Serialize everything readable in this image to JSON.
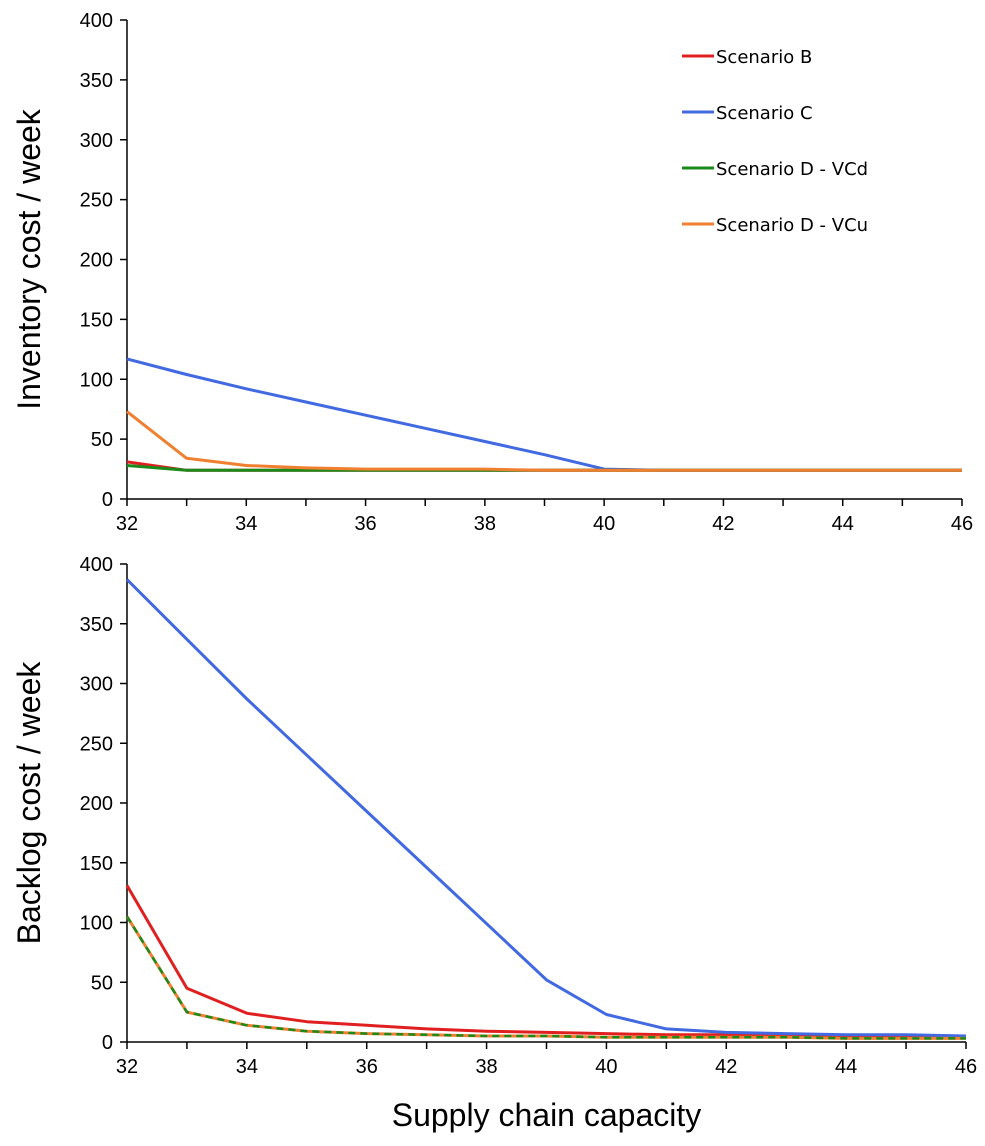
{
  "chart_data": [
    {
      "type": "line",
      "title": "",
      "xlabel": "",
      "ylabel": "Inventory cost / week",
      "xlim": [
        32,
        46
      ],
      "ylim": [
        0,
        400
      ],
      "xticks": [
        32,
        34,
        36,
        38,
        40,
        42,
        44,
        46
      ],
      "yticks": [
        0,
        50,
        100,
        150,
        200,
        250,
        300,
        350,
        400
      ],
      "grid": false,
      "legend_position": "top-right",
      "x": [
        32,
        33,
        34,
        35,
        36,
        37,
        38,
        39,
        40,
        41,
        42,
        43,
        44,
        45,
        46
      ],
      "series": [
        {
          "name": "Scenario B",
          "color": "#e02020",
          "dash": false,
          "values": [
            31,
            24,
            24,
            24,
            24,
            24,
            24,
            24,
            24,
            24,
            24,
            24,
            24,
            24,
            24
          ]
        },
        {
          "name": "Scenario C",
          "color": "#4169e1",
          "dash": false,
          "values": [
            117,
            104,
            92,
            81,
            70,
            59,
            48,
            37,
            25,
            24,
            24,
            24,
            24,
            24,
            24
          ]
        },
        {
          "name": "Scenario D - VCd",
          "color": "#1a8a1a",
          "dash": false,
          "values": [
            28,
            24,
            24,
            24,
            24,
            24,
            24,
            24,
            24,
            24,
            24,
            24,
            24,
            24,
            24
          ]
        },
        {
          "name": "Scenario D - VCu",
          "color": "#f08030",
          "dash": false,
          "values": [
            73,
            34,
            28,
            26,
            25,
            25,
            25,
            24,
            24,
            24,
            24,
            24,
            24,
            24,
            24
          ]
        }
      ]
    },
    {
      "type": "line",
      "title": "",
      "xlabel": "Supply chain capacity",
      "ylabel": "Backlog cost / week",
      "xlim": [
        32,
        46
      ],
      "ylim": [
        0,
        400
      ],
      "xticks": [
        32,
        34,
        36,
        38,
        40,
        42,
        44,
        46
      ],
      "yticks": [
        0,
        50,
        100,
        150,
        200,
        250,
        300,
        350,
        400
      ],
      "grid": false,
      "x": [
        32,
        33,
        34,
        35,
        36,
        37,
        38,
        39,
        40,
        41,
        42,
        43,
        44,
        45,
        46
      ],
      "series": [
        {
          "name": "Scenario B",
          "color": "#e02020",
          "dash": false,
          "values": [
            131,
            45,
            24,
            17,
            14,
            11,
            9,
            8,
            7,
            6,
            6,
            5,
            5,
            5,
            5
          ]
        },
        {
          "name": "Scenario C",
          "color": "#4169e1",
          "dash": false,
          "values": [
            387,
            337,
            287,
            240,
            193,
            146,
            99,
            52,
            23,
            11,
            8,
            7,
            6,
            6,
            5
          ]
        },
        {
          "name": "Scenario D - VCu",
          "color": "#f08030",
          "dash": false,
          "values": [
            105,
            25,
            14,
            9,
            7,
            6,
            5,
            5,
            4,
            4,
            4,
            4,
            3,
            3,
            3
          ]
        },
        {
          "name": "Scenario D - VCd",
          "color": "#1a8a1a",
          "dash": true,
          "values": [
            105,
            25,
            14,
            9,
            7,
            6,
            5,
            5,
            4,
            4,
            4,
            4,
            3,
            3,
            3
          ]
        }
      ]
    }
  ]
}
